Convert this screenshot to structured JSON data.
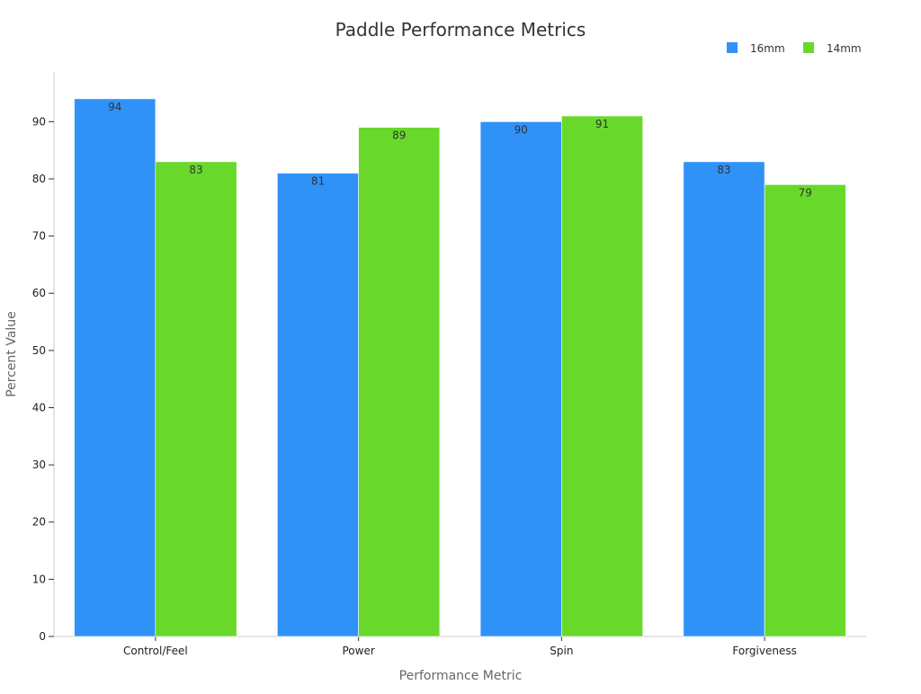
{
  "chart_data": {
    "type": "bar",
    "title": "Paddle Performance Metrics",
    "xlabel": "Performance Metric",
    "ylabel": "Percent Value",
    "categories": [
      "Control/Feel",
      "Power",
      "Spin",
      "Forgiveness"
    ],
    "series": [
      {
        "name": "16mm",
        "values": [
          94,
          81,
          90,
          83
        ],
        "color": "#3092f7"
      },
      {
        "name": "14mm",
        "values": [
          83,
          89,
          91,
          79
        ],
        "color": "#68d92a"
      }
    ],
    "ylim": [
      0,
      98.7
    ],
    "yticks": [
      0,
      10,
      20,
      30,
      40,
      50,
      60,
      70,
      80,
      90
    ],
    "grid": false,
    "legend_position": "top-right",
    "data_labels": true,
    "colors": {
      "axis": "#cccccc",
      "tick_text": "#222222",
      "axis_label": "#666666",
      "title": "#333333",
      "data_label": "#333333"
    }
  }
}
